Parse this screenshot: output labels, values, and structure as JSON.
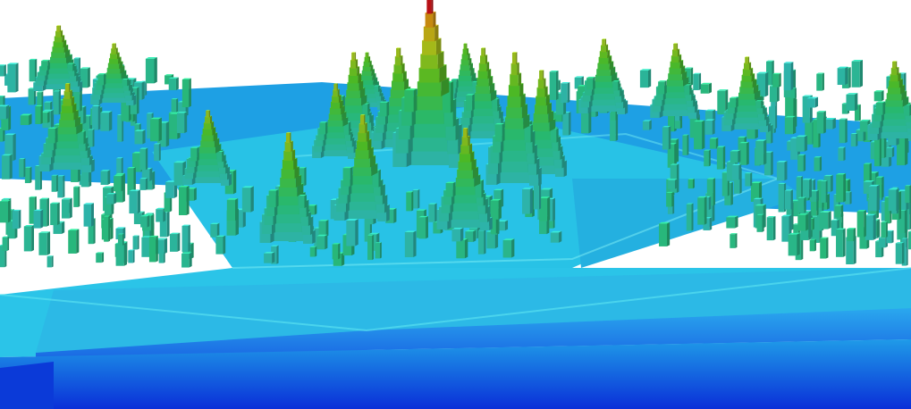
{
  "scene": {
    "subject": "3d-stacked-block-terrain",
    "palette": {
      "base_dark": "#0a2fd8",
      "base_mid": "#1f8fe6",
      "plate_light": "#30d6ee",
      "plate_mid": "#26b8e4",
      "low_block": "#39d9df",
      "mid_block": "#2fe089",
      "green_block": "#5ee02c",
      "yellow_block": "#d8e21c",
      "orange_block": "#f2a512",
      "peak_red": "#e0141a",
      "background": "#ffffff"
    },
    "peak_count": 20,
    "max_level": 20
  }
}
